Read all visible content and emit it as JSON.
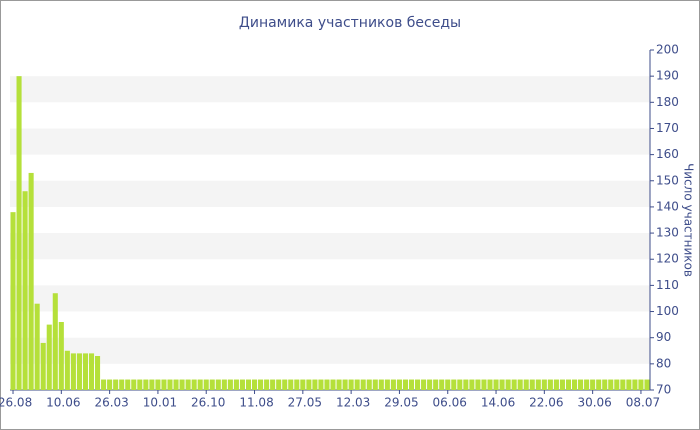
{
  "chart_data": {
    "type": "bar",
    "title": "Динамика участников беседы",
    "y_label": "Число участников",
    "categories": [
      "26.08",
      null,
      null,
      null,
      null,
      null,
      null,
      null,
      "10.06",
      null,
      null,
      null,
      null,
      null,
      null,
      null,
      "26.03",
      null,
      null,
      null,
      null,
      null,
      null,
      null,
      "10.01",
      null,
      null,
      null,
      null,
      null,
      null,
      null,
      "26.10",
      null,
      null,
      null,
      null,
      null,
      null,
      null,
      "11.08",
      null,
      null,
      null,
      null,
      null,
      null,
      null,
      "27.05",
      null,
      null,
      null,
      null,
      null,
      null,
      null,
      "12.03",
      null,
      null,
      null,
      null,
      null,
      null,
      null,
      "29.05",
      null,
      null,
      null,
      null,
      null,
      null,
      null,
      "06.06",
      null,
      null,
      null,
      null,
      null,
      null,
      null,
      "14.06",
      null,
      null,
      null,
      null,
      null,
      null,
      null,
      "22.06",
      null,
      null,
      null,
      null,
      null,
      null,
      null,
      "30.06",
      null,
      null,
      null,
      null,
      null,
      null,
      null,
      "08.07",
      null
    ],
    "values": [
      138,
      190,
      146,
      153,
      103,
      88,
      95,
      107,
      96,
      85,
      84,
      84,
      84,
      84,
      83,
      74,
      74,
      74,
      74,
      74,
      74,
      74,
      74,
      74,
      74,
      74,
      74,
      74,
      74,
      74,
      74,
      74,
      74,
      74,
      74,
      74,
      74,
      74,
      74,
      74,
      74,
      74,
      74,
      74,
      74,
      74,
      74,
      74,
      74,
      74,
      74,
      74,
      74,
      74,
      74,
      74,
      74,
      74,
      74,
      74,
      74,
      74,
      74,
      74,
      74,
      74,
      74,
      74,
      74,
      74,
      74,
      74,
      74,
      74,
      74,
      74,
      74,
      74,
      74,
      74,
      74,
      74,
      74,
      74,
      74,
      74,
      74,
      74,
      74,
      74,
      74,
      74,
      74,
      74,
      74,
      74,
      74,
      74,
      74,
      74,
      74,
      74,
      74,
      74,
      74,
      74
    ],
    "color": "#b5e03a",
    "ylim": [
      70,
      200
    ],
    "yticks": [
      70,
      80,
      90,
      100,
      110,
      120,
      130,
      140,
      150,
      160,
      170,
      180,
      190,
      200
    ],
    "grid": "alternate-bands",
    "y_axis_side": "right"
  }
}
